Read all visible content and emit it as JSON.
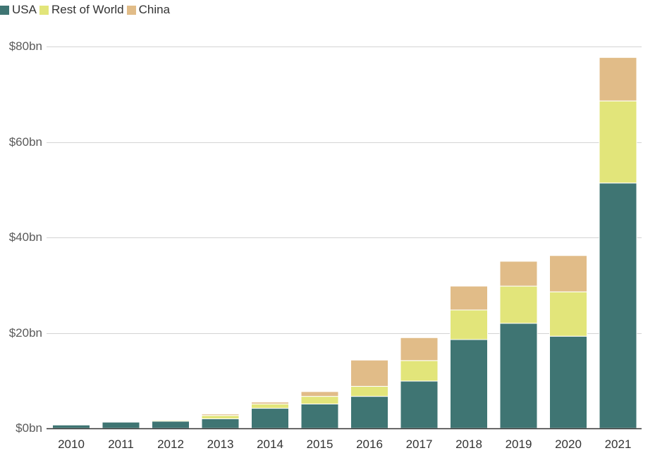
{
  "chart_data": {
    "type": "bar",
    "stacked": true,
    "categories": [
      "2010",
      "2011",
      "2012",
      "2013",
      "2014",
      "2015",
      "2016",
      "2017",
      "2018",
      "2019",
      "2020",
      "2021"
    ],
    "series": [
      {
        "name": "USA",
        "color": "#3f7573",
        "values": [
          0.7,
          1.3,
          1.5,
          2.0,
          4.2,
          5.1,
          6.7,
          9.9,
          18.6,
          22.0,
          19.3,
          51.4
        ]
      },
      {
        "name": "Rest of World",
        "color": "#e2e57a",
        "values": [
          0.0,
          0.0,
          0.2,
          0.7,
          0.9,
          1.6,
          2.1,
          4.3,
          6.2,
          7.8,
          9.3,
          17.2
        ]
      },
      {
        "name": "China",
        "color": "#e1bc88",
        "values": [
          0.0,
          0.0,
          0.0,
          0.3,
          0.4,
          1.0,
          5.5,
          4.8,
          5.0,
          5.2,
          7.6,
          9.1
        ]
      }
    ],
    "y_ticks": [
      0,
      20,
      40,
      60,
      80
    ],
    "y_tick_labels": [
      "$0bn",
      "$20bn",
      "$40bn",
      "$60bn",
      "$80bn"
    ],
    "ylim": [
      0,
      80
    ],
    "grid": true,
    "legend_position": "top-left",
    "title": "",
    "xlabel": "",
    "ylabel": ""
  }
}
